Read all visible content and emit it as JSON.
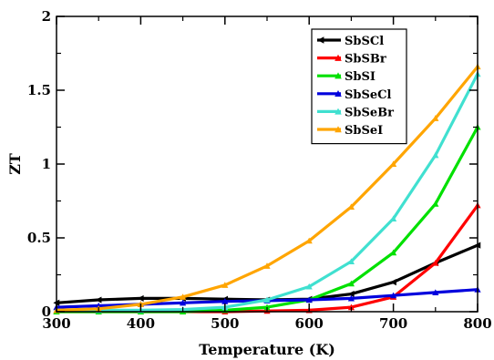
{
  "chart_data": {
    "type": "line",
    "title": "",
    "xlabel": "Temperature (K)",
    "ylabel": "ZT",
    "xlim": [
      300,
      800
    ],
    "ylim": [
      0,
      2
    ],
    "xticks": [
      300,
      400,
      500,
      600,
      700,
      800
    ],
    "yticks": [
      0,
      0.5,
      1,
      1.5,
      2
    ],
    "ytick_labels": [
      "0",
      "0.5",
      "1",
      "1.5",
      "2"
    ],
    "grid": false,
    "legend_position": "top-right",
    "x": [
      300,
      350,
      400,
      450,
      500,
      550,
      600,
      650,
      700,
      750,
      800
    ],
    "series": [
      {
        "name": "SbSCl",
        "color": "#000000",
        "marker": "left-triangle",
        "values": [
          0.06,
          0.08,
          0.09,
          0.09,
          0.085,
          0.08,
          0.085,
          0.12,
          0.2,
          0.33,
          0.45
        ]
      },
      {
        "name": "SbSBr",
        "color": "#ff0000",
        "marker": "triangle",
        "values": [
          0.0,
          0.0,
          0.0,
          0.0,
          0.0,
          0.005,
          0.01,
          0.03,
          0.1,
          0.33,
          0.72
        ]
      },
      {
        "name": "SbSI",
        "color": "#00e000",
        "marker": "triangle",
        "values": [
          0.0,
          0.0,
          0.0,
          0.0,
          0.01,
          0.03,
          0.08,
          0.19,
          0.4,
          0.73,
          1.25
        ]
      },
      {
        "name": "SbSeCl",
        "color": "#0000dd",
        "marker": "triangle",
        "values": [
          0.03,
          0.04,
          0.05,
          0.06,
          0.07,
          0.075,
          0.08,
          0.09,
          0.11,
          0.13,
          0.15
        ]
      },
      {
        "name": "SbSeBr",
        "color": "#40e0d0",
        "marker": "triangle",
        "values": [
          0.01,
          0.01,
          0.01,
          0.015,
          0.03,
          0.08,
          0.17,
          0.34,
          0.63,
          1.06,
          1.61
        ]
      },
      {
        "name": "SbSeI",
        "color": "#ffa500",
        "marker": "triangle",
        "values": [
          0.01,
          0.02,
          0.05,
          0.1,
          0.18,
          0.31,
          0.48,
          0.71,
          1.0,
          1.31,
          1.66
        ]
      }
    ]
  }
}
